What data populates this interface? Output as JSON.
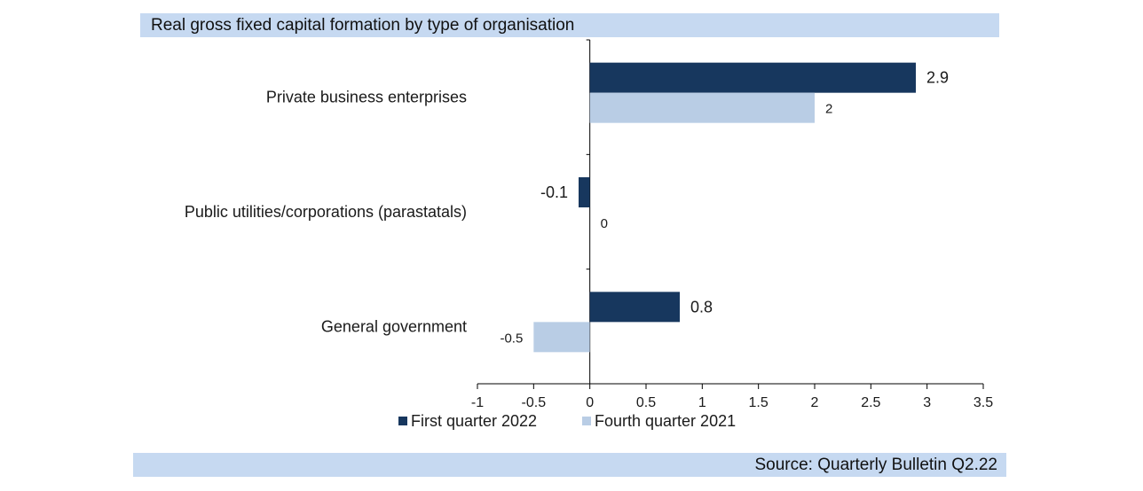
{
  "header": {
    "title": "Real gross fixed capital formation by type of organisation"
  },
  "footer": {
    "source": "Source: Quarterly Bulletin Q2.22"
  },
  "chart_data": {
    "type": "bar",
    "orientation": "horizontal",
    "title": "Real gross fixed capital formation by type of organisation",
    "categories": [
      "Private business enterprises",
      "Public utilities/corporations (parastatals)",
      "General government"
    ],
    "series": [
      {
        "name": "First quarter 2022",
        "color": "#17375e",
        "values": [
          2.9,
          -0.1,
          0.8
        ],
        "labels": [
          "2.9",
          "-0.1",
          "0.8"
        ]
      },
      {
        "name": "Fourth quarter 2021",
        "color": "#b9cde5",
        "values": [
          2,
          0,
          -0.5
        ],
        "labels": [
          "2",
          "0",
          "-0.5"
        ]
      }
    ],
    "xlim": [
      -1,
      3.5
    ],
    "xticks": [
      -1,
      -0.5,
      0,
      0.5,
      1,
      1.5,
      2,
      2.5,
      3,
      3.5
    ],
    "xtick_labels": [
      "-1",
      "-0.5",
      "0",
      "0.5",
      "1",
      "1.5",
      "2",
      "2.5",
      "3",
      "3.5"
    ],
    "grid": false,
    "legend_position": "bottom"
  }
}
